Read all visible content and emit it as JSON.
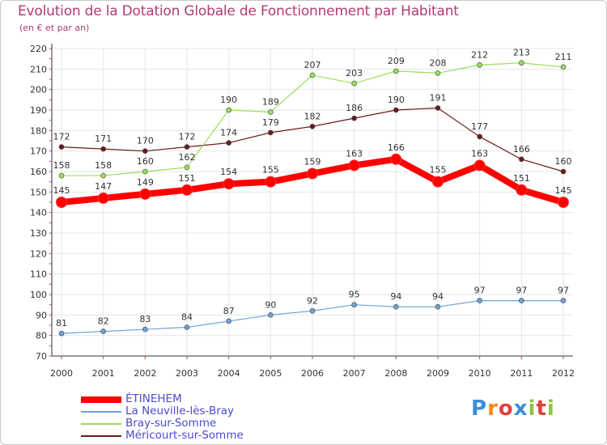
{
  "chart_data": {
    "type": "line",
    "title": "Evolution de la Dotation Globale de Fonctionnement par Habitant",
    "subtitle": "(en € et par an)",
    "xlabel": "",
    "ylabel": "",
    "ylim": [
      70,
      220
    ],
    "y_ticks": [
      70,
      80,
      90,
      100,
      110,
      120,
      130,
      140,
      150,
      160,
      170,
      180,
      190,
      200,
      210,
      220
    ],
    "grid": true,
    "legend_position": "bottom-left",
    "categories": [
      "2000",
      "2001",
      "2002",
      "2003",
      "2004",
      "2005",
      "2006",
      "2007",
      "2008",
      "2009",
      "2010",
      "2011",
      "2012"
    ],
    "series": [
      {
        "name": "Méricourt-sur-Somme",
        "color": "#6b1a1a",
        "bold": false,
        "values": [
          172,
          171,
          170,
          172,
          174,
          179,
          182,
          186,
          190,
          191,
          177,
          166,
          160
        ]
      },
      {
        "name": "Bray-sur-Somme",
        "color": "#99e05a",
        "bold": false,
        "values": [
          158,
          158,
          160,
          162,
          190,
          189,
          207,
          203,
          209,
          208,
          212,
          213,
          211
        ]
      },
      {
        "name": "La Neuville-lès-Bray",
        "color": "#6fa3d6",
        "bold": false,
        "values": [
          81,
          82,
          83,
          84,
          87,
          90,
          92,
          95,
          94,
          94,
          97,
          97,
          97
        ]
      },
      {
        "name": "ÉTINEHEM",
        "color": "#ff0000",
        "bold": true,
        "values": [
          145,
          147,
          149,
          151,
          154,
          155,
          159,
          163,
          166,
          155,
          163,
          151,
          145
        ]
      }
    ],
    "legend_order": [
      "ÉTINEHEM",
      "La Neuville-lès-Bray",
      "Bray-sur-Somme",
      "Méricourt-sur-Somme"
    ]
  },
  "logo": {
    "text": "Proxiti"
  }
}
